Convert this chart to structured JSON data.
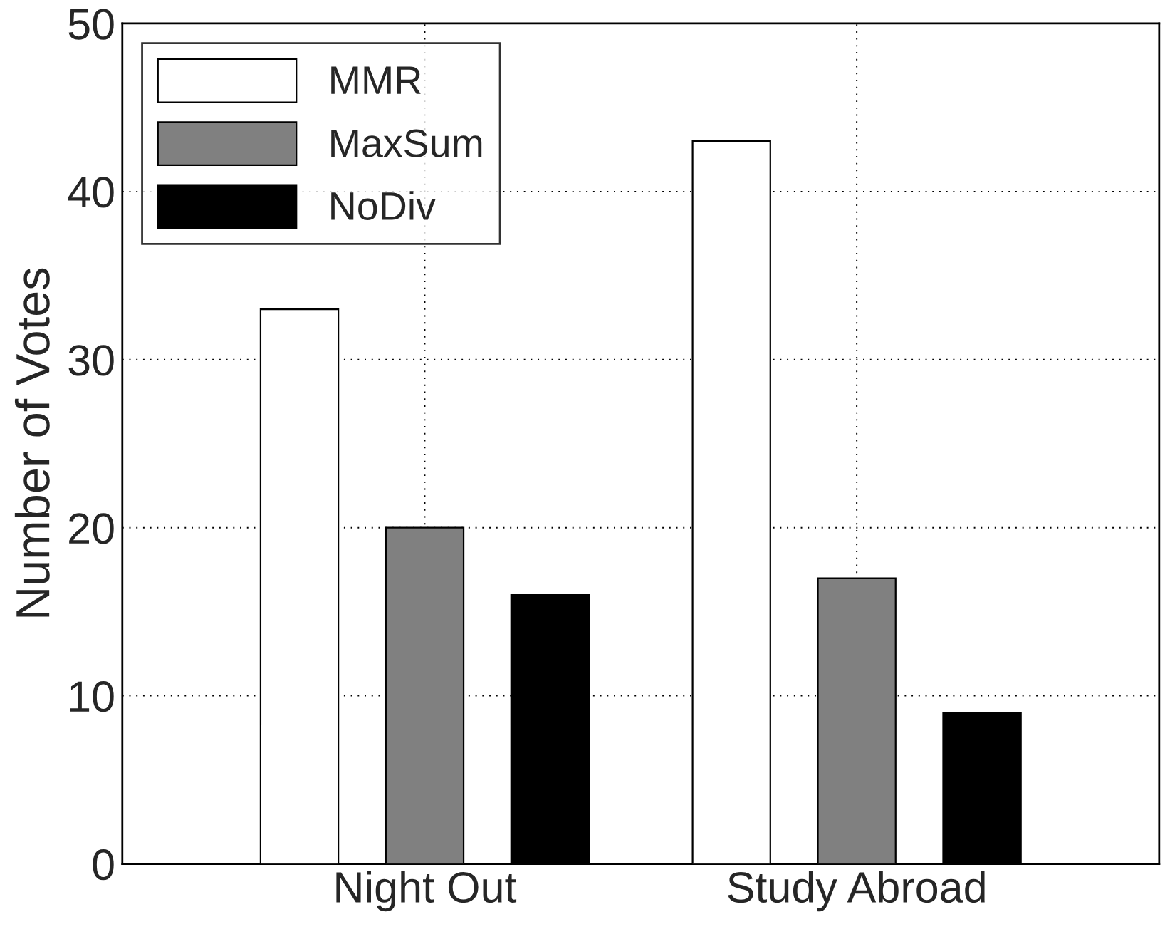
{
  "chart_data": {
    "type": "bar",
    "ylabel": "Number of Votes",
    "categories": [
      "Night Out",
      "Study Abroad"
    ],
    "series": [
      {
        "name": "MMR",
        "color": "#ffffff",
        "values": [
          33,
          43
        ]
      },
      {
        "name": "MaxSum",
        "color": "#808080",
        "values": [
          20,
          17
        ]
      },
      {
        "name": "NoDiv",
        "color": "#000000",
        "values": [
          16,
          9
        ]
      }
    ],
    "ylim": [
      0,
      50
    ],
    "yticks": [
      0,
      10,
      20,
      30,
      40,
      50
    ],
    "grid": true,
    "legend": "top left"
  }
}
